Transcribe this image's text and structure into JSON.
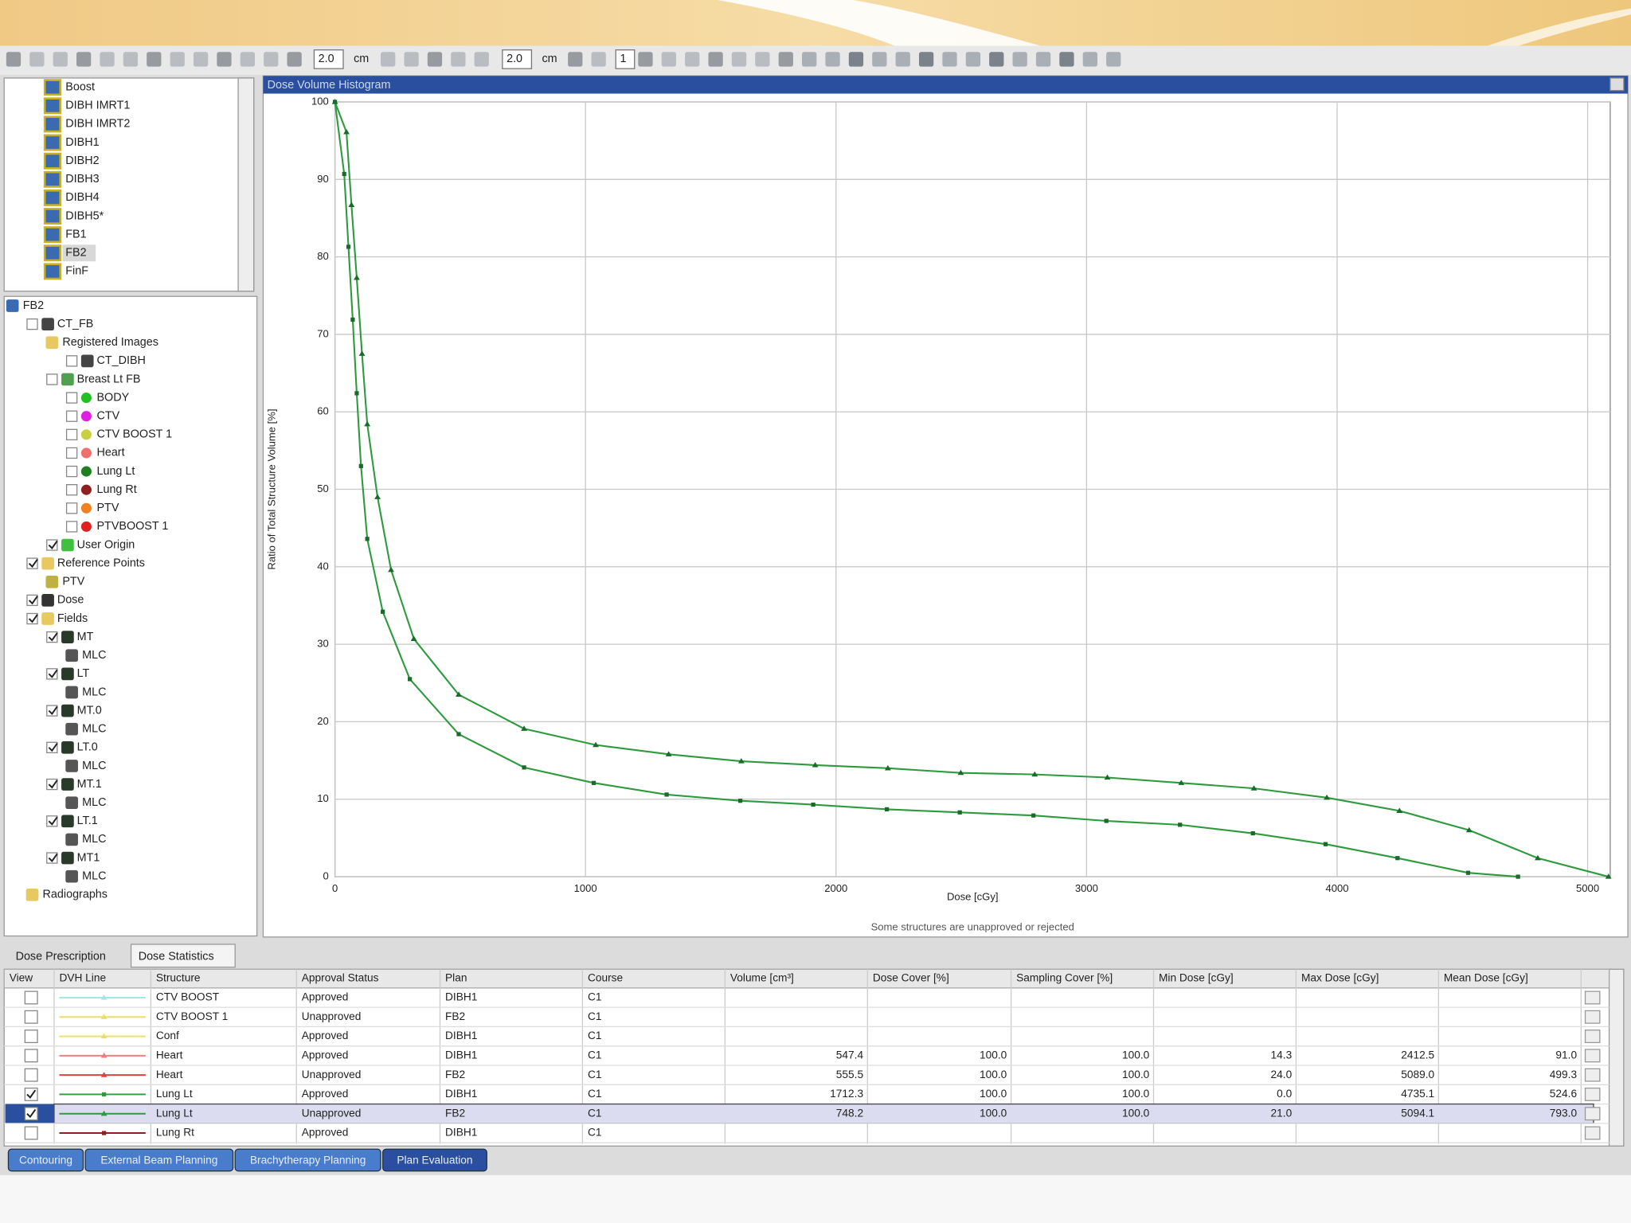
{
  "toolbar": {
    "fields": [
      "2.0",
      "cm",
      "2.0",
      "cm",
      "1"
    ]
  },
  "plans": {
    "items": [
      "Boost",
      "DIBH IMRT1",
      "DIBH IMRT2",
      "DIBH1",
      "DIBH2",
      "DIBH3",
      "DIBH4",
      "DIBH5*",
      "FB1",
      "FB2",
      "FinF"
    ],
    "selected": 9
  },
  "tree": {
    "items": [
      {
        "label": "FB2",
        "depth": 0,
        "check": "none",
        "icon": "plan"
      },
      {
        "label": "CT_FB",
        "depth": 1,
        "check": "empty",
        "icon": "image"
      },
      {
        "label": "Registered Images",
        "depth": 2,
        "check": "none",
        "icon": "folder"
      },
      {
        "label": "CT_DIBH",
        "depth": 3,
        "check": "empty",
        "icon": "image"
      },
      {
        "label": "Breast Lt FB",
        "depth": 2,
        "check": "empty",
        "icon": "structure-set"
      },
      {
        "label": "BODY",
        "depth": 3,
        "check": "empty",
        "icon": "structure",
        "color": "#22c022"
      },
      {
        "label": "CTV",
        "depth": 3,
        "check": "empty",
        "icon": "structure",
        "color": "#e020e0"
      },
      {
        "label": "CTV BOOST 1",
        "depth": 3,
        "check": "empty",
        "icon": "structure",
        "color": "#c8d040"
      },
      {
        "label": "Heart",
        "depth": 3,
        "check": "empty",
        "icon": "structure",
        "color": "#f07070"
      },
      {
        "label": "Lung Lt",
        "depth": 3,
        "check": "empty",
        "icon": "structure",
        "color": "#208020"
      },
      {
        "label": "Lung Rt",
        "depth": 3,
        "check": "empty",
        "icon": "structure",
        "color": "#902020"
      },
      {
        "label": "PTV",
        "depth": 3,
        "check": "empty",
        "icon": "structure",
        "color": "#f08020"
      },
      {
        "label": "PTVBOOST 1",
        "depth": 3,
        "check": "empty",
        "icon": "structure",
        "color": "#e02020"
      },
      {
        "label": "User Origin",
        "depth": 2,
        "check": "checked",
        "icon": "origin"
      },
      {
        "label": "Reference Points",
        "depth": 1,
        "check": "checked",
        "icon": "folder"
      },
      {
        "label": "PTV",
        "depth": 2,
        "check": "none",
        "icon": "point"
      },
      {
        "label": "Dose",
        "depth": 1,
        "check": "checked",
        "icon": "dose"
      },
      {
        "label": "Fields",
        "depth": 1,
        "check": "checked",
        "icon": "folder"
      },
      {
        "label": "MT",
        "depth": 2,
        "check": "checked",
        "icon": "field"
      },
      {
        "label": "MLC",
        "depth": 3,
        "check": "none",
        "icon": "mlc"
      },
      {
        "label": "LT",
        "depth": 2,
        "check": "checked",
        "icon": "field"
      },
      {
        "label": "MLC",
        "depth": 3,
        "check": "none",
        "icon": "mlc"
      },
      {
        "label": "MT.0",
        "depth": 2,
        "check": "checked",
        "icon": "field"
      },
      {
        "label": "MLC",
        "depth": 3,
        "check": "none",
        "icon": "mlc"
      },
      {
        "label": "LT.0",
        "depth": 2,
        "check": "checked",
        "icon": "field"
      },
      {
        "label": "MLC",
        "depth": 3,
        "check": "none",
        "icon": "mlc"
      },
      {
        "label": "MT.1",
        "depth": 2,
        "check": "checked",
        "icon": "field"
      },
      {
        "label": "MLC",
        "depth": 3,
        "check": "none",
        "icon": "mlc"
      },
      {
        "label": "LT.1",
        "depth": 2,
        "check": "checked",
        "icon": "field"
      },
      {
        "label": "MLC",
        "depth": 3,
        "check": "none",
        "icon": "mlc"
      },
      {
        "label": "MT1",
        "depth": 2,
        "check": "checked",
        "icon": "field"
      },
      {
        "label": "MLC",
        "depth": 3,
        "check": "none",
        "icon": "mlc"
      },
      {
        "label": "Radiographs",
        "depth": 1,
        "check": "none",
        "icon": "folder"
      }
    ]
  },
  "chart_data": {
    "type": "line",
    "title": "Dose Volume Histogram",
    "x_label": "Dose [cGy]",
    "y_label": "Ratio of Total Structure Volume [%]",
    "note": "Some structures are unapproved or rejected",
    "xlim": [
      0,
      5090
    ],
    "ylim": [
      0,
      100
    ],
    "xticks": [
      0,
      1000,
      2000,
      3000,
      4000,
      5000
    ],
    "yticks": [
      0,
      10,
      20,
      30,
      40,
      50,
      60,
      70,
      80,
      90,
      100
    ],
    "grid": true,
    "series": [
      {
        "color": "#2e9a3e",
        "marker": "triangle",
        "x": [
          0,
          46,
          66,
          87,
          108,
          129,
          170,
          224,
          315,
          494,
          755,
          1041,
          1332,
          1622,
          1917,
          2207,
          2498,
          2793,
          3083,
          3378,
          3668,
          3959,
          4249,
          4527,
          4801,
          5083
        ],
        "values": [
          100,
          96.1,
          86.7,
          77.3,
          67.5,
          58.4,
          49,
          39.6,
          30.7,
          23.5,
          19.1,
          17,
          15.8,
          14.9,
          14.4,
          14,
          13.4,
          13.2,
          12.8,
          12.1,
          11.4,
          10.2,
          8.5,
          6,
          2.4,
          0
        ]
      },
      {
        "color": "#2e9a3e",
        "marker": "square",
        "x": [
          0,
          37,
          54,
          71,
          87,
          104,
          129,
          191,
          299,
          494,
          755,
          1033,
          1324,
          1618,
          1909,
          2203,
          2494,
          2788,
          3079,
          3373,
          3664,
          3954,
          4241,
          4523,
          4722
        ],
        "values": [
          100,
          90.7,
          81.3,
          71.9,
          62.4,
          53,
          43.6,
          34.2,
          25.5,
          18.4,
          14.1,
          12.1,
          10.6,
          9.8,
          9.3,
          8.7,
          8.3,
          7.9,
          7.2,
          6.7,
          5.6,
          4.2,
          2.4,
          0.5,
          0
        ]
      }
    ]
  },
  "tabs": {
    "items": [
      "Dose Prescription",
      "Dose Statistics"
    ],
    "active": 1
  },
  "table": {
    "columns": [
      "View",
      "DVH Line",
      "Structure",
      "Approval Status",
      "Plan",
      "Course",
      "Volume [cm³]",
      "Dose Cover [%]",
      "Sampling Cover [%]",
      "Min Dose [cGy]",
      "Max Dose [cGy]",
      "Mean Dose [cGy]"
    ],
    "rows": [
      [
        "CTV BOOST",
        "Approved",
        "DIBH1",
        "C1",
        null,
        null,
        null,
        null,
        null,
        null
      ],
      [
        "CTV BOOST 1",
        "Unapproved",
        "FB2",
        "C1",
        null,
        null,
        null,
        null,
        null,
        null
      ],
      [
        "Conf",
        "Approved",
        "DIBH1",
        "C1",
        null,
        null,
        null,
        null,
        null,
        null
      ],
      [
        "Heart",
        "Approved",
        "DIBH1",
        "C1",
        "547.4",
        "100.0",
        "100.0",
        "14.3",
        "2412.5",
        "91.0"
      ],
      [
        "Heart",
        "Unapproved",
        "FB2",
        "C1",
        "555.5",
        "100.0",
        "100.0",
        "24.0",
        "5089.0",
        "499.3"
      ],
      [
        "Lung Lt",
        "Approved",
        "DIBH1",
        "C1",
        "1712.3",
        "100.0",
        "100.0",
        "0.0",
        "4735.1",
        "524.6"
      ],
      [
        "Lung Lt",
        "Unapproved",
        "FB2",
        "C1",
        "748.2",
        "100.0",
        "100.0",
        "21.0",
        "5094.1",
        "793.0"
      ],
      [
        "Lung Rt",
        "Approved",
        "DIBH1",
        "C1",
        null,
        null,
        null,
        null,
        null,
        null
      ]
    ],
    "checked": [
      false,
      false,
      false,
      false,
      false,
      true,
      true,
      false
    ],
    "line_colors": [
      "#a0e8e8",
      "#e8e060",
      "#e8e060",
      "#f08080",
      "#e04040",
      "#2e9a3e",
      "#2e9a3e",
      "#902020"
    ],
    "line_markers": [
      "triangle",
      "triangle",
      "triangle",
      "triangle",
      "triangle",
      "square",
      "triangle",
      "square"
    ],
    "selected": 6
  },
  "modules": {
    "items": [
      "Contouring",
      "External Beam Planning",
      "Brachytherapy Planning",
      "Plan Evaluation"
    ],
    "active": 3
  }
}
